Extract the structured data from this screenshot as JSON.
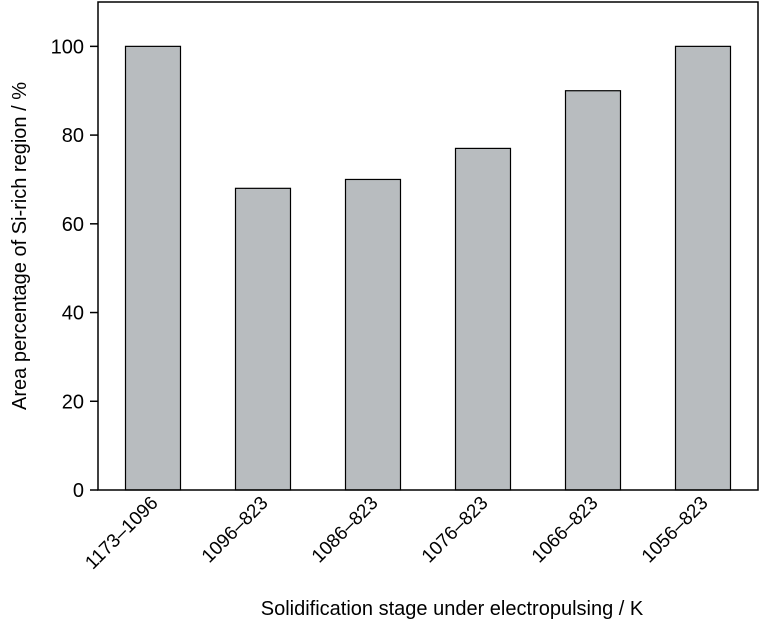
{
  "chart_data": {
    "type": "bar",
    "categories": [
      "1173–1096",
      "1096–823",
      "1086–823",
      "1076–823",
      "1066–823",
      "1056–823"
    ],
    "values": [
      100,
      68,
      70,
      77,
      90,
      100
    ],
    "xlabel": "Solidification stage under electropulsing / K",
    "ylabel": "Area percentage of Si-rich region / %",
    "ylim": [
      0,
      110
    ],
    "yticks": [
      0,
      20,
      40,
      60,
      80,
      100
    ],
    "grid": false,
    "bar_color": "#b8bcbf",
    "bar_edge_color": "#000000"
  }
}
